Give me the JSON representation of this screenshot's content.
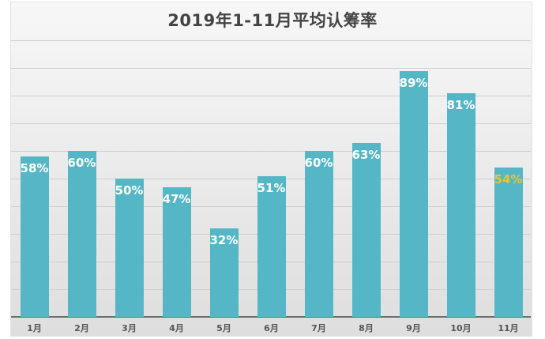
{
  "chart_data": {
    "type": "bar",
    "title": "2019年1-11月平均认筹率",
    "xlabel": "",
    "ylabel": "",
    "categories": [
      "1月",
      "2月",
      "3月",
      "4月",
      "5月",
      "6月",
      "7月",
      "8月",
      "9月",
      "10月",
      "11月"
    ],
    "values": [
      58,
      60,
      50,
      47,
      32,
      51,
      60,
      63,
      89,
      81,
      54
    ],
    "value_labels": [
      "58%",
      "60%",
      "50%",
      "47%",
      "32%",
      "51%",
      "60%",
      "63%",
      "89%",
      "81%",
      "54%"
    ],
    "unit": "%",
    "ylim": [
      0,
      100
    ],
    "grid": true,
    "legend": null,
    "bar_color": "#55b7c6",
    "label_color": "#ffffff",
    "highlight_label_color": "#e9c33a",
    "highlight_index": 10
  }
}
